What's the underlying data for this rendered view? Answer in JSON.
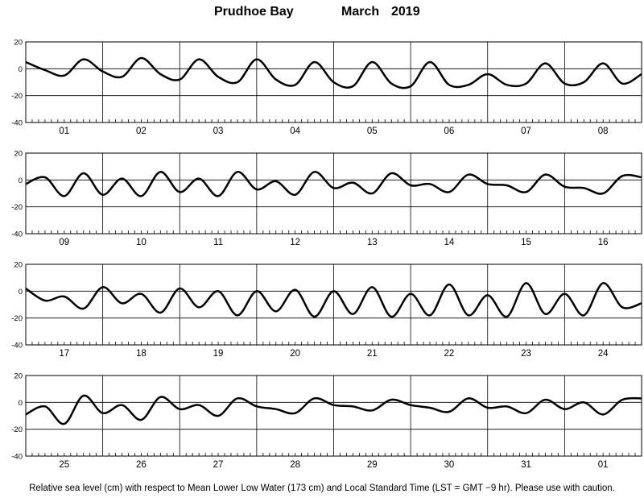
{
  "header": {
    "station": "Prudhoe Bay",
    "month": "March",
    "year": "2019"
  },
  "footnote": "Relative sea level (cm) with respect to Mean Lower Low Water (173 cm) and Local Standard Time (LST = GMT −9 hr). Please use with caution.",
  "chart_data": {
    "type": "line",
    "xlabel": "",
    "ylabel": "",
    "ylim": [
      -40,
      20
    ],
    "yticks": [
      20,
      0,
      -20,
      -40
    ],
    "grid": true,
    "panels": [
      {
        "days": [
          "01",
          "02",
          "03",
          "04",
          "05",
          "06",
          "07",
          "08"
        ],
        "x_hours": [
          0,
          6,
          12,
          18,
          24,
          30,
          36,
          42,
          48,
          54,
          60,
          66,
          72,
          78,
          84,
          90,
          96,
          102,
          108,
          114,
          120,
          126,
          132,
          138,
          144,
          150,
          156,
          162,
          168,
          174,
          180,
          186,
          192
        ],
        "sea_level_cm": [
          5,
          -1,
          -5,
          7,
          -2,
          -6,
          8,
          -4,
          -8,
          7,
          -6,
          -10,
          7,
          -8,
          -12,
          5,
          -10,
          -13,
          5,
          -11,
          -13,
          5,
          -12,
          -12,
          -4,
          -12,
          -11,
          4,
          -11,
          -10,
          4,
          -11,
          -4
        ]
      },
      {
        "days": [
          "09",
          "10",
          "11",
          "12",
          "13",
          "14",
          "15",
          "16"
        ],
        "x_hours": [
          0,
          6,
          12,
          18,
          24,
          30,
          36,
          42,
          48,
          54,
          60,
          66,
          72,
          78,
          84,
          90,
          96,
          102,
          108,
          114,
          120,
          126,
          132,
          138,
          144,
          150,
          156,
          162,
          168,
          174,
          180,
          186,
          192
        ],
        "sea_level_cm": [
          -3,
          2,
          -12,
          5,
          -11,
          1,
          -12,
          6,
          -9,
          1,
          -12,
          6,
          -7,
          -1,
          -11,
          6,
          -6,
          -2,
          -10,
          5,
          -4,
          -3,
          -9,
          4,
          -3,
          -4,
          -9,
          4,
          -5,
          -6,
          -10,
          3,
          2
        ]
      },
      {
        "days": [
          "17",
          "18",
          "19",
          "20",
          "21",
          "22",
          "23",
          "24"
        ],
        "x_hours": [
          0,
          6,
          12,
          18,
          24,
          30,
          36,
          42,
          48,
          54,
          60,
          66,
          72,
          78,
          84,
          90,
          96,
          102,
          108,
          114,
          120,
          126,
          132,
          138,
          144,
          150,
          156,
          162,
          168,
          174,
          180,
          186,
          192
        ],
        "sea_level_cm": [
          2,
          -7,
          -4,
          -13,
          3,
          -9,
          -2,
          -16,
          2,
          -12,
          0,
          -18,
          0,
          -15,
          1,
          -19,
          0,
          -17,
          3,
          -19,
          -2,
          -18,
          5,
          -18,
          -3,
          -19,
          6,
          -17,
          -2,
          -18,
          6,
          -12,
          -9
        ]
      },
      {
        "days": [
          "25",
          "26",
          "27",
          "28",
          "29",
          "30",
          "31",
          "01"
        ],
        "x_hours": [
          0,
          6,
          12,
          18,
          24,
          30,
          36,
          42,
          48,
          54,
          60,
          66,
          72,
          78,
          84,
          90,
          96,
          102,
          108,
          114,
          120,
          126,
          132,
          138,
          144,
          150,
          156,
          162,
          168,
          174,
          180,
          186,
          192
        ],
        "sea_level_cm": [
          -9,
          -3,
          -16,
          5,
          -8,
          -2,
          -13,
          4,
          -5,
          -2,
          -10,
          3,
          -3,
          -5,
          -8,
          3,
          -2,
          -3,
          -6,
          2,
          -2,
          -4,
          -7,
          3,
          -4,
          -3,
          -8,
          2,
          -5,
          0,
          -9,
          2,
          3
        ]
      }
    ]
  }
}
